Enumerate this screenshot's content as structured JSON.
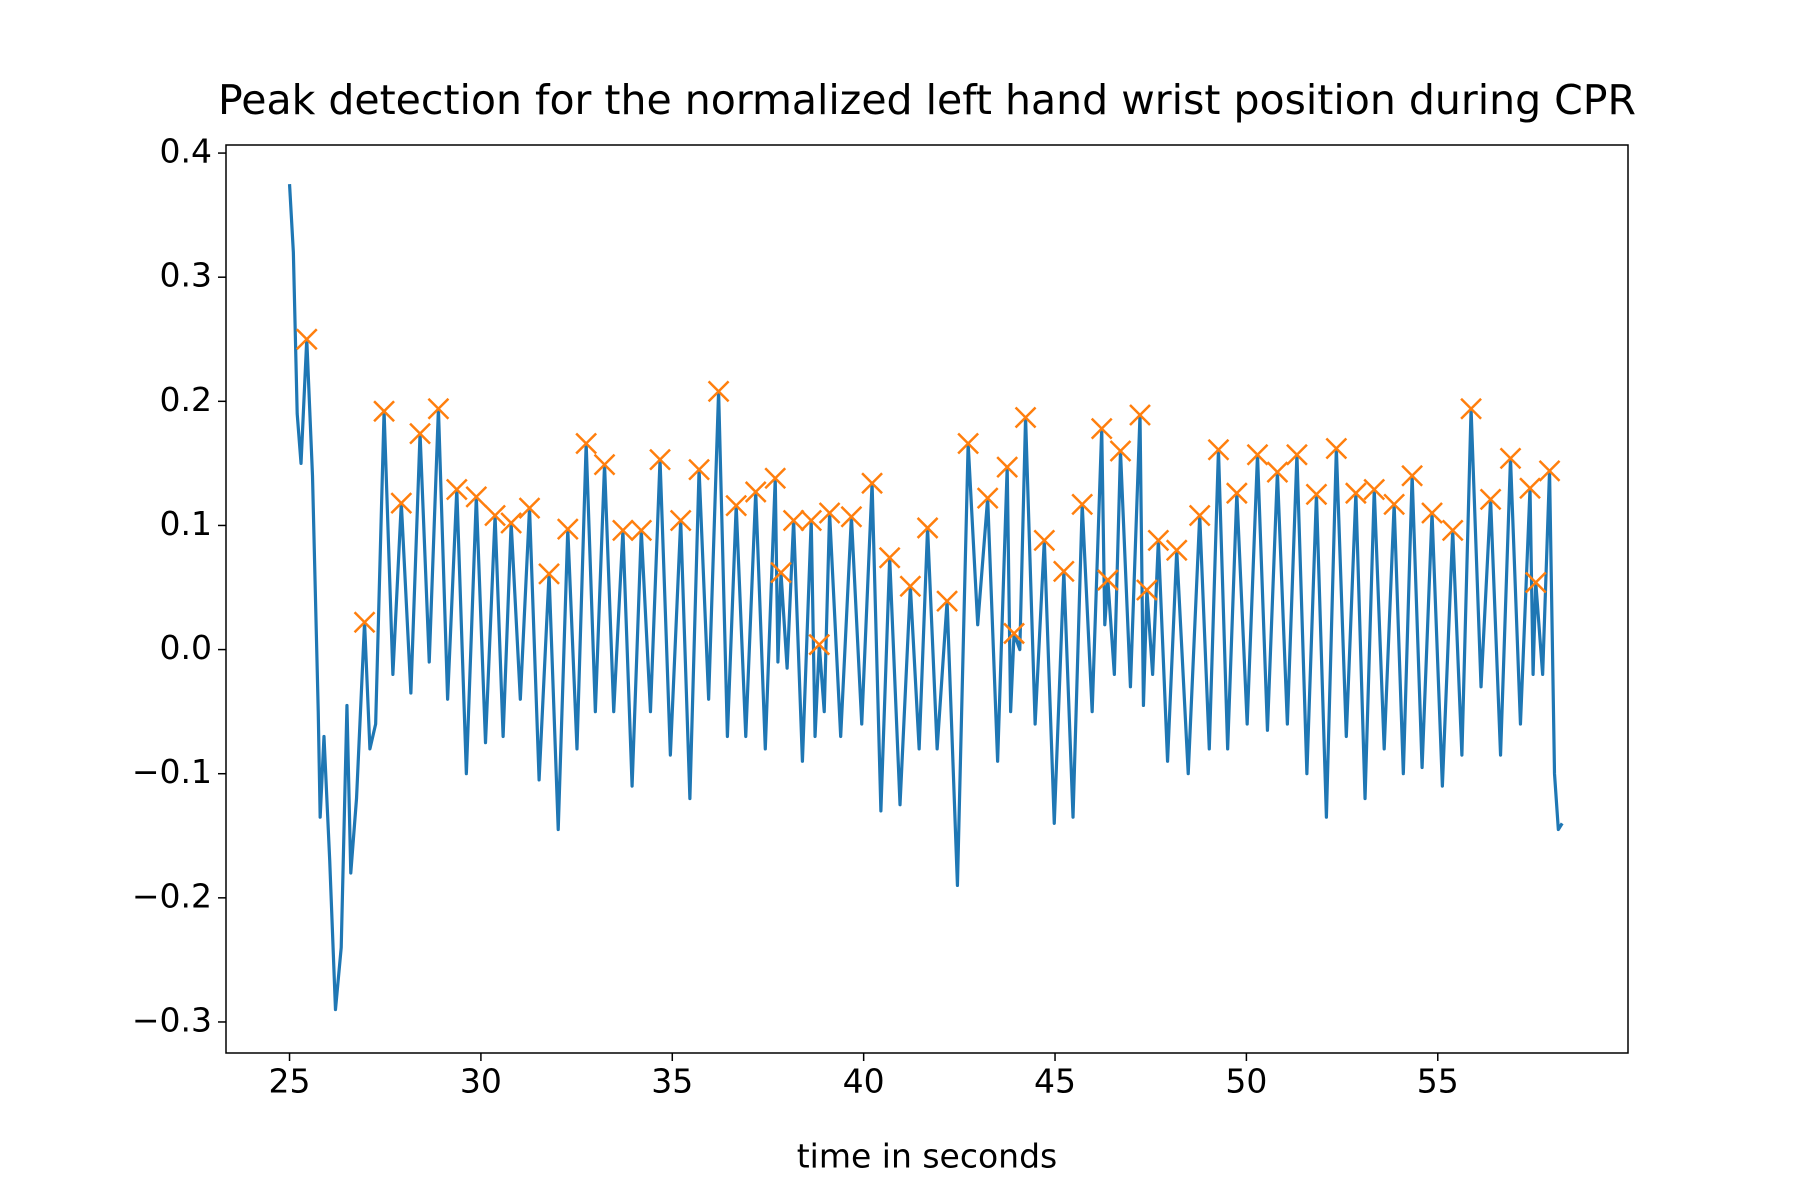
{
  "chart_data": {
    "type": "line",
    "title": "Peak detection for the normalized left hand wrist position during CPR",
    "xlabel": "time in seconds",
    "xlim": [
      23.34,
      59.97
    ],
    "ylim": [
      -0.325,
      0.4065
    ],
    "xticks": [
      25,
      30,
      35,
      40,
      45,
      50,
      55
    ],
    "yticks": [
      {
        "value": -0.3,
        "label": "−0.3"
      },
      {
        "value": -0.2,
        "label": "−0.2"
      },
      {
        "value": -0.1,
        "label": "−0.1"
      },
      {
        "value": 0,
        "label": "0.0"
      },
      0.1,
      0.2,
      0.3,
      0.4
    ],
    "series": [
      {
        "style": "line",
        "color": "#1f77b4",
        "x": [
          25.0,
          25.1,
          25.2,
          25.3,
          25.45,
          25.6,
          25.75,
          25.8,
          25.9,
          26.05,
          26.2,
          26.35,
          26.5,
          26.6,
          26.75,
          26.96,
          27.1,
          27.25,
          27.47,
          27.7,
          27.92,
          28.17,
          28.41,
          28.65,
          28.89,
          29.13,
          29.37,
          29.62,
          29.88,
          30.12,
          30.37,
          30.58,
          30.79,
          31.03,
          31.27,
          31.52,
          31.78,
          32.02,
          32.27,
          32.51,
          32.75,
          32.99,
          33.23,
          33.47,
          33.71,
          33.95,
          34.19,
          34.43,
          34.68,
          34.95,
          35.22,
          35.46,
          35.7,
          35.95,
          36.21,
          36.44,
          36.67,
          36.92,
          37.18,
          37.43,
          37.69,
          37.76,
          37.84,
          38.0,
          38.17,
          38.4,
          38.63,
          38.73,
          38.84,
          38.97,
          39.11,
          39.4,
          39.68,
          39.95,
          40.22,
          40.45,
          40.68,
          40.95,
          41.22,
          41.45,
          41.67,
          41.92,
          42.18,
          42.45,
          42.73,
          42.98,
          43.24,
          43.5,
          43.75,
          43.84,
          43.93,
          44.08,
          44.23,
          44.48,
          44.72,
          44.98,
          45.23,
          45.47,
          45.71,
          45.97,
          46.22,
          46.3,
          46.38,
          46.55,
          46.71,
          46.97,
          47.22,
          47.31,
          47.4,
          47.55,
          47.7,
          47.94,
          48.18,
          48.48,
          48.78,
          49.03,
          49.27,
          49.51,
          49.75,
          50.02,
          50.29,
          50.55,
          50.81,
          51.07,
          51.32,
          51.58,
          51.83,
          52.09,
          52.35,
          52.61,
          52.86,
          53.1,
          53.34,
          53.6,
          53.86,
          54.1,
          54.33,
          54.59,
          54.85,
          55.12,
          55.39,
          55.63,
          55.87,
          56.13,
          56.38,
          56.64,
          56.9,
          57.16,
          57.41,
          57.49,
          57.56,
          57.74,
          57.92,
          58.05,
          58.15,
          58.25
        ],
        "values": [
          0.375,
          0.32,
          0.19,
          0.15,
          0.25,
          0.14,
          -0.05,
          -0.135,
          -0.07,
          -0.17,
          -0.29,
          -0.24,
          -0.045,
          -0.18,
          -0.12,
          0.022,
          -0.08,
          -0.06,
          0.192,
          -0.02,
          0.118,
          -0.035,
          0.174,
          -0.01,
          0.194,
          -0.04,
          0.129,
          -0.1,
          0.123,
          -0.075,
          0.108,
          -0.07,
          0.102,
          -0.04,
          0.114,
          -0.105,
          0.061,
          -0.145,
          0.097,
          -0.08,
          0.166,
          -0.05,
          0.149,
          -0.05,
          0.096,
          -0.11,
          0.096,
          -0.05,
          0.153,
          -0.085,
          0.104,
          -0.12,
          0.145,
          -0.04,
          0.208,
          -0.07,
          0.116,
          -0.07,
          0.127,
          -0.08,
          0.138,
          -0.01,
          0.062,
          -0.015,
          0.104,
          -0.09,
          0.104,
          -0.07,
          0.004,
          -0.05,
          0.11,
          -0.07,
          0.107,
          -0.06,
          0.134,
          -0.13,
          0.074,
          -0.125,
          0.051,
          -0.08,
          0.098,
          -0.08,
          0.039,
          -0.19,
          0.166,
          0.02,
          0.122,
          -0.09,
          0.147,
          -0.05,
          0.013,
          0.0,
          0.187,
          -0.06,
          0.088,
          -0.14,
          0.063,
          -0.135,
          0.117,
          -0.05,
          0.178,
          0.02,
          0.056,
          -0.02,
          0.16,
          -0.03,
          0.189,
          -0.045,
          0.048,
          -0.02,
          0.088,
          -0.09,
          0.08,
          -0.1,
          0.108,
          -0.08,
          0.161,
          -0.08,
          0.126,
          -0.06,
          0.157,
          -0.065,
          0.143,
          -0.06,
          0.157,
          -0.1,
          0.125,
          -0.135,
          0.162,
          -0.07,
          0.126,
          -0.12,
          0.129,
          -0.08,
          0.117,
          -0.1,
          0.14,
          -0.095,
          0.11,
          -0.11,
          0.096,
          -0.085,
          0.194,
          -0.03,
          0.121,
          -0.085,
          0.154,
          -0.06,
          0.13,
          -0.02,
          0.054,
          -0.02,
          0.144,
          -0.1,
          -0.145,
          -0.14
        ]
      },
      {
        "style": "x",
        "color": "#ff7f0e",
        "x": [
          25.45,
          26.96,
          27.47,
          27.92,
          28.41,
          28.89,
          29.37,
          29.88,
          30.37,
          30.79,
          31.27,
          31.78,
          32.27,
          32.75,
          33.23,
          33.71,
          34.19,
          34.68,
          35.22,
          35.7,
          36.21,
          36.67,
          37.18,
          37.69,
          37.84,
          38.17,
          38.63,
          38.84,
          39.11,
          39.68,
          40.22,
          40.68,
          41.22,
          41.67,
          42.18,
          42.73,
          43.24,
          43.75,
          43.93,
          44.23,
          44.72,
          45.23,
          45.71,
          46.22,
          46.38,
          46.71,
          47.22,
          47.4,
          47.7,
          48.18,
          48.78,
          49.27,
          49.75,
          50.29,
          50.81,
          51.32,
          51.83,
          52.35,
          52.86,
          53.34,
          53.86,
          54.33,
          54.85,
          55.39,
          55.87,
          56.38,
          56.9,
          57.41,
          57.56,
          57.92
        ],
        "values": [
          0.25,
          0.022,
          0.192,
          0.118,
          0.174,
          0.194,
          0.129,
          0.123,
          0.108,
          0.102,
          0.114,
          0.061,
          0.097,
          0.166,
          0.149,
          0.096,
          0.096,
          0.153,
          0.104,
          0.145,
          0.208,
          0.116,
          0.127,
          0.138,
          0.062,
          0.104,
          0.104,
          0.004,
          0.11,
          0.107,
          0.134,
          0.074,
          0.051,
          0.098,
          0.039,
          0.166,
          0.122,
          0.147,
          0.013,
          0.187,
          0.088,
          0.063,
          0.117,
          0.178,
          0.056,
          0.16,
          0.189,
          0.048,
          0.088,
          0.08,
          0.108,
          0.161,
          0.126,
          0.157,
          0.143,
          0.157,
          0.125,
          0.162,
          0.126,
          0.129,
          0.117,
          0.14,
          0.11,
          0.096,
          0.194,
          0.121,
          0.154,
          0.13,
          0.054,
          0.144
        ]
      }
    ]
  }
}
